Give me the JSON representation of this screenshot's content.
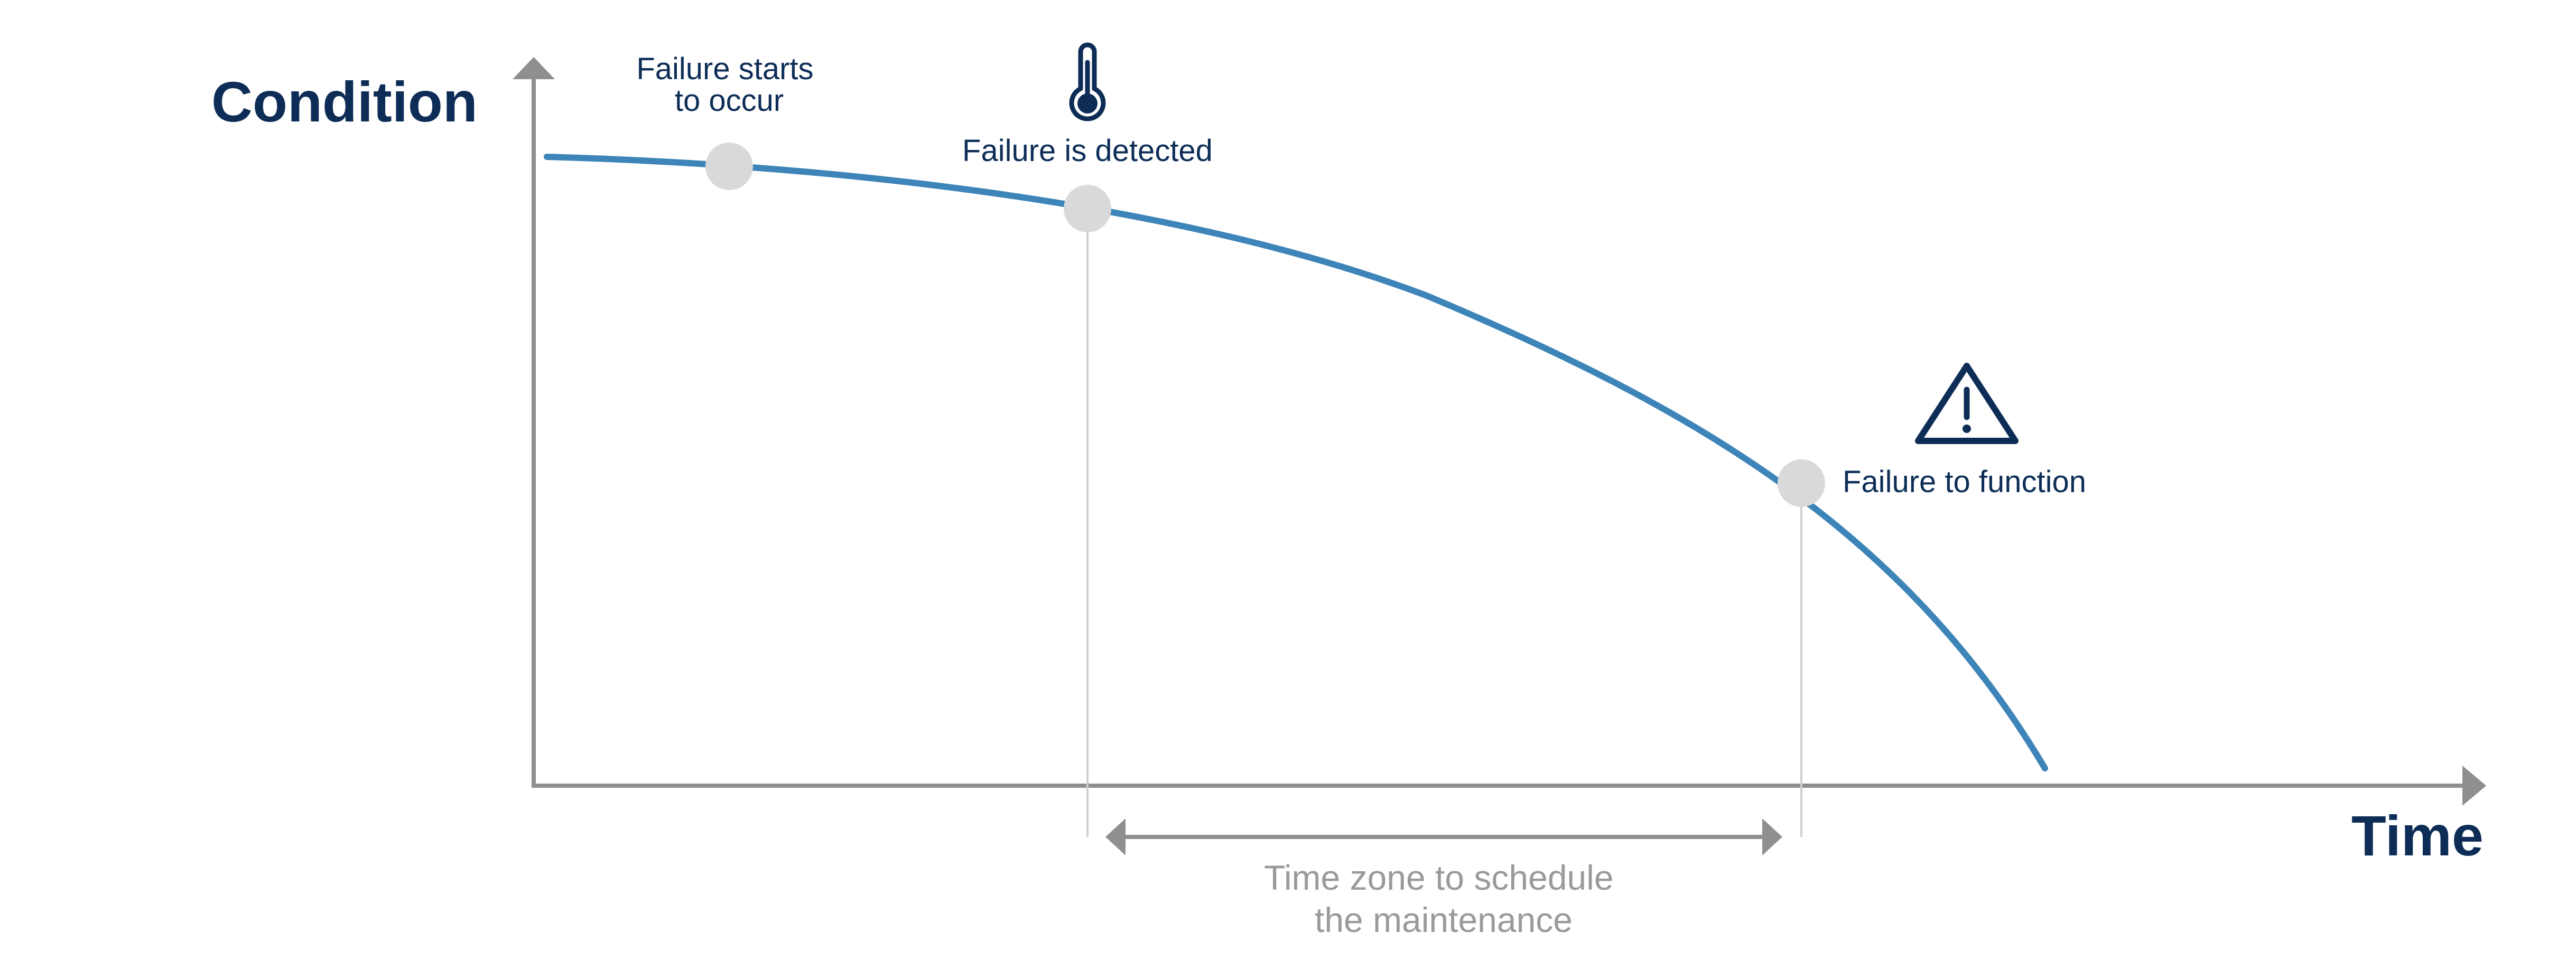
{
  "colors": {
    "axis": "#8f8f8f",
    "curve": "#3d84b8",
    "navy": "#0d2d57",
    "marker": "#d9d9d9",
    "guide": "#cfcfcf",
    "zone_text": "#9a9a9a"
  },
  "axes": {
    "y_title": "Condition",
    "x_title": "Time"
  },
  "events": [
    {
      "id": "failure-starts",
      "label_lines": [
        "Failure starts",
        "to occur"
      ],
      "icon": null
    },
    {
      "id": "failure-detected",
      "label_lines": [
        "Failure is detected"
      ],
      "icon": "thermometer-icon"
    },
    {
      "id": "failure-to-function",
      "label_lines": [
        "Failure to function"
      ],
      "icon": "warning-triangle-icon"
    }
  ],
  "zone": {
    "label_lines": [
      "Time zone to schedule",
      "the maintenance"
    ]
  }
}
